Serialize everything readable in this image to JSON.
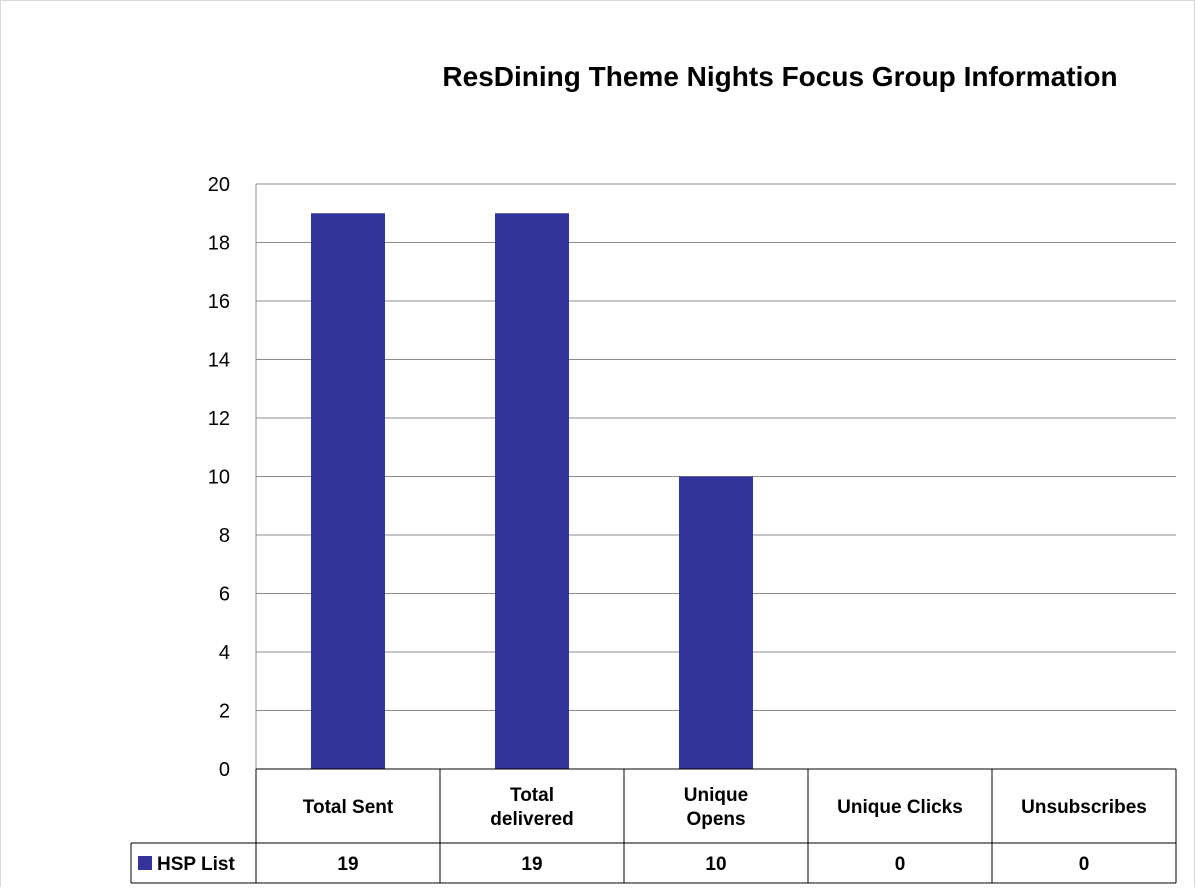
{
  "chart_data": {
    "type": "bar",
    "title": "ResDining Theme Nights Focus Group Information",
    "categories": [
      [
        "Total Sent"
      ],
      [
        "Total",
        "delivered"
      ],
      [
        "Unique",
        "Opens"
      ],
      [
        "Unique Clicks"
      ],
      [
        "Unsubscribes"
      ]
    ],
    "series": [
      {
        "name": "HSP List",
        "values": [
          19,
          19,
          10,
          0,
          0
        ],
        "color": "#333399"
      }
    ],
    "ylim": [
      0,
      20
    ],
    "yticks": [
      0,
      2,
      4,
      6,
      8,
      10,
      12,
      14,
      16,
      18,
      20
    ],
    "grid": true,
    "legend": "data-table",
    "data_table": true
  }
}
